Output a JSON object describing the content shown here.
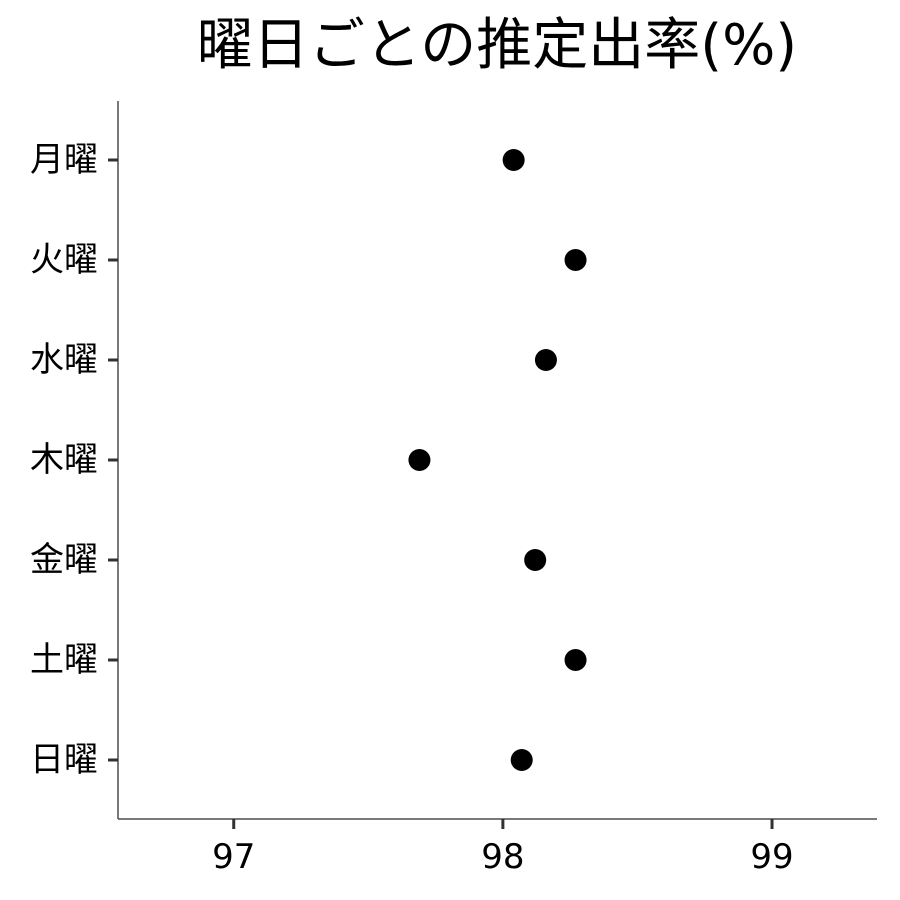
{
  "chart_data": {
    "type": "scatter",
    "title": "曜日ごとの推定出率(%)",
    "xlabel": "",
    "ylabel": "",
    "categories": [
      "月曜",
      "火曜",
      "水曜",
      "木曜",
      "金曜",
      "土曜",
      "日曜"
    ],
    "values": [
      98.04,
      98.27,
      98.16,
      97.69,
      98.12,
      98.27,
      98.07
    ],
    "xlim": [
      96.57,
      99.39
    ],
    "xticks": [
      97,
      98,
      99
    ],
    "grid": false,
    "point_color": "#000000"
  }
}
